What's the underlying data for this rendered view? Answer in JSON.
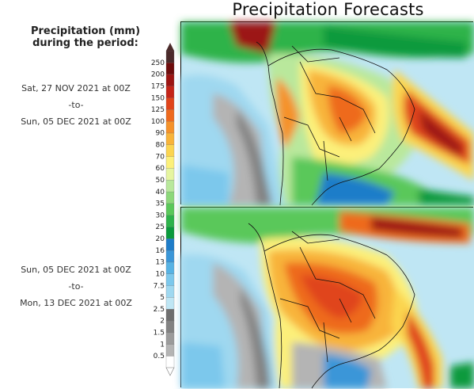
{
  "title": "Precipitation Forecasts",
  "legend": {
    "title_line1": "Precipitation (mm)",
    "title_line2": "during the period:",
    "levels": [
      "0.5",
      "1",
      "1.5",
      "2",
      "2.5",
      "5",
      "7.5",
      "10",
      "13",
      "16",
      "20",
      "25",
      "30",
      "35",
      "40",
      "50",
      "60",
      "70",
      "80",
      "90",
      "100",
      "125",
      "150",
      "175",
      "200",
      "250"
    ],
    "colors": [
      "#ffffff",
      "#b4b4b4",
      "#9b9b9b",
      "#828282",
      "#6e6e6e",
      "#bfe6f4",
      "#9fd8f0",
      "#7cc8ec",
      "#57b3e4",
      "#3a96d8",
      "#1f7dc9",
      "#0a9a3c",
      "#2db34a",
      "#5ac85a",
      "#8cd87a",
      "#b9e89c",
      "#e6f5a0",
      "#fcf07a",
      "#fbd550",
      "#f8b43a",
      "#f5922a",
      "#ee6a1e",
      "#e0441a",
      "#c42418",
      "#9c1412",
      "#6e0c0c",
      "#4a2a2a"
    ]
  },
  "panels": [
    {
      "start_date": "Sat, 27 NOV 2021 at 00Z",
      "separator": "-to-",
      "end_date": "Sun, 05 DEC 2021 at 00Z"
    },
    {
      "start_date": "Sun, 05 DEC 2021 at 00Z",
      "separator": "-to-",
      "end_date": "Mon, 13 DEC 2021 at 00Z"
    }
  ]
}
